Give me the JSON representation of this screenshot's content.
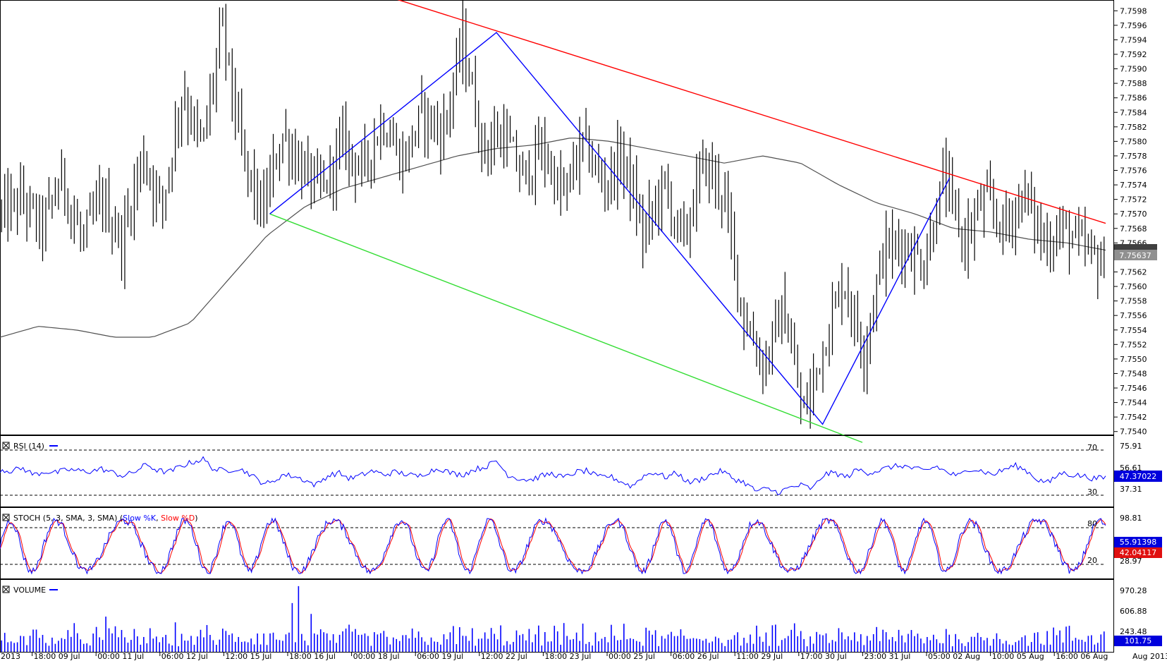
{
  "colors": {
    "bars": "#000000",
    "ma": "#505050",
    "blue": "#0000ff",
    "red": "#ff0000",
    "green": "#33dd33",
    "rsi": "#0000ff",
    "stoch_k": "#0000ff",
    "stoch_d": "#ff0000",
    "volume": "#0000ff",
    "current_price_badge": "#808080"
  },
  "icons": {
    "panel_close": "close-box-icon"
  },
  "price_panel": {
    "y_ticks": [
      "7.7598",
      "7.7596",
      "7.7594",
      "7.7592",
      "7.7590",
      "7.7588",
      "7.7586",
      "7.7584",
      "7.7582",
      "7.7580",
      "7.7578",
      "7.7576",
      "7.7574",
      "7.7572",
      "7.7570",
      "7.7568",
      "7.7566",
      "7.7564",
      "7.7562",
      "7.7560",
      "7.7558",
      "7.7556",
      "7.7554",
      "7.7552",
      "7.7550",
      "7.7548",
      "7.7546",
      "7.7544",
      "7.7542",
      "7.7540"
    ],
    "current_price": "7.75637",
    "current_price_value": 7.75637
  },
  "rsi_panel": {
    "label": "RSI (14)",
    "y_ticks": [
      "75.91",
      "56.61",
      "37.31"
    ],
    "level_high": "70",
    "level_low": "30",
    "current_value": "47.37022"
  },
  "stoch_panel": {
    "label": "STOCH (5, 3, SMA, 3, SMA)",
    "k_label": "Slow %K",
    "d_label": "Slow %D",
    "y_ticks": [
      "98.81",
      "28.97"
    ],
    "level_high": "80",
    "level_low": "20",
    "k_value": "55.91398",
    "d_value": "42.04117"
  },
  "volume_panel": {
    "label": "VOLUME",
    "y_ticks": [
      "970.28",
      "606.88",
      "243.48"
    ],
    "current_value": "101.75"
  },
  "x_axis": {
    "labels": [
      "2013",
      "18:00 09 Jul",
      "00:00 11 Jul",
      "06:00 12 Jul",
      "12:00 15 Jul",
      "18:00 16 Jul",
      "00:00 18 Jul",
      "06:00 19 Jul",
      "12:00 22 Jul",
      "18:00 23 Jul",
      "00:00 25 Jul",
      "06:00 26 Jul",
      "11:00 29 Jul",
      "17:00 30 Jul",
      "23:00 31 Jul",
      "05:00 02 Aug",
      "10:00 05 Aug",
      "16:00 06 Aug"
    ],
    "right_label": "Aug 2013"
  },
  "chart_data": [
    {
      "type": "ohlc",
      "name": "price",
      "bar_count": 350,
      "ylim": [
        7.7539,
        7.7599
      ],
      "anchor_prices": [
        7.757,
        7.7572,
        7.7568,
        7.7575,
        7.7566,
        7.7572,
        7.7566,
        7.7578,
        7.7571,
        7.7587,
        7.7579,
        7.7596,
        7.7578,
        7.757,
        7.7581,
        7.7576,
        7.7573,
        7.758,
        7.7576,
        7.7583,
        7.7577,
        7.7584,
        7.7581,
        7.7594,
        7.7579,
        7.7581,
        7.7575,
        7.7579,
        7.7572,
        7.758,
        7.7574,
        7.7578,
        7.7567,
        7.7574,
        7.7566,
        7.7577,
        7.7573,
        7.7556,
        7.7549,
        7.7557,
        7.7542,
        7.7552,
        7.7561,
        7.7551,
        7.7565,
        7.7566,
        7.7563,
        7.7575,
        7.7566,
        7.7572,
        7.7568,
        7.7573,
        7.7566,
        7.7568,
        7.7565,
        7.7563
      ],
      "moving_average": [
        7.7553,
        7.75545,
        7.7554,
        7.7553,
        7.7553,
        7.7555,
        7.7561,
        7.7567,
        7.7571,
        7.75735,
        7.7575,
        7.75765,
        7.7578,
        7.7579,
        7.75795,
        7.75805,
        7.758,
        7.7579,
        7.7578,
        7.7577,
        7.7578,
        7.7577,
        7.7574,
        7.75715,
        7.757,
        7.7568,
        7.75675,
        7.75665,
        7.7566,
        7.7565
      ],
      "trendlines": [
        {
          "name": "upper-channel",
          "color": "red",
          "points": [
            [
              0.35,
              7.76
            ],
            [
              1.0,
              7.75687
            ]
          ]
        },
        {
          "name": "lower-channel",
          "color": "green",
          "points": [
            [
              0.244,
              7.757
            ],
            [
              0.78,
              7.75385
            ]
          ]
        },
        {
          "name": "zigzag",
          "color": "blue",
          "points": [
            [
              0.244,
              7.757
            ],
            [
              0.449,
              7.7595
            ],
            [
              0.744,
              7.7541
            ],
            [
              0.859,
              7.7575
            ]
          ]
        }
      ]
    },
    {
      "type": "line",
      "name": "RSI (14)",
      "ylim": [
        0,
        100
      ],
      "reference_lines": [
        70,
        30
      ],
      "values": [
        60,
        58,
        62,
        52,
        57,
        55,
        60,
        58,
        57,
        61,
        55,
        50,
        57,
        68,
        58,
        56,
        65,
        71,
        76,
        60,
        58,
        62,
        55,
        42,
        38,
        52,
        50,
        44,
        36,
        50,
        55,
        46,
        51,
        58,
        52,
        56,
        53,
        49,
        57,
        62,
        54,
        52,
        60,
        64,
        73,
        52,
        46,
        44,
        50,
        54,
        47,
        56,
        58,
        48,
        50,
        42,
        34,
        50,
        56,
        48,
        55,
        40,
        44,
        52,
        58,
        46,
        40,
        27,
        30,
        25,
        32,
        36,
        30,
        52,
        55,
        48,
        60,
        55,
        59,
        64,
        66,
        61,
        58,
        65,
        55,
        50,
        62,
        58,
        52,
        60,
        66,
        58,
        44,
        40,
        55,
        52,
        50,
        46,
        47.37
      ]
    },
    {
      "type": "line",
      "name": "STOCH (5, 3, SMA, 3, SMA)",
      "ylim": [
        0,
        100
      ],
      "reference_lines": [
        80,
        20
      ],
      "series": [
        {
          "name": "Slow %K",
          "period_bars": 10,
          "current": 55.91398
        },
        {
          "name": "Slow %D",
          "period_bars": 10,
          "current": 42.04117
        }
      ]
    },
    {
      "type": "bar",
      "name": "VOLUME",
      "ylim": [
        0,
        1000
      ],
      "typical_range": [
        80,
        450
      ],
      "spikes": [
        {
          "bar": 94,
          "value": 970
        },
        {
          "bar": 92,
          "value": 720
        },
        {
          "bar": 98,
          "value": 560
        },
        {
          "bar": 33,
          "value": 520
        }
      ],
      "current": 101.75
    }
  ]
}
